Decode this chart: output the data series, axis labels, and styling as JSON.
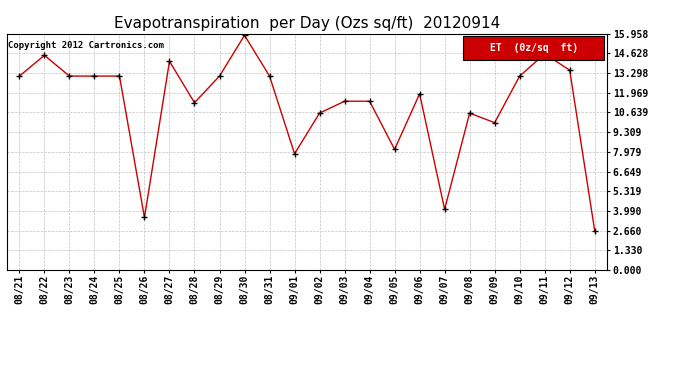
{
  "title": "Evapotranspiration  per Day (Ozs sq/ft)  20120914",
  "copyright": "Copyright 2012 Cartronics.com",
  "legend_label": "ET  (0z/sq  ft)",
  "x_labels": [
    "08/21",
    "08/22",
    "08/23",
    "08/24",
    "08/25",
    "08/26",
    "08/27",
    "08/28",
    "08/29",
    "08/30",
    "08/31",
    "09/01",
    "09/02",
    "09/03",
    "09/04",
    "09/05",
    "09/06",
    "09/07",
    "09/08",
    "09/09",
    "09/10",
    "09/11",
    "09/12",
    "09/13"
  ],
  "y_values": [
    13.1,
    14.5,
    13.1,
    13.1,
    13.1,
    3.55,
    14.1,
    11.3,
    13.1,
    15.85,
    13.1,
    7.85,
    10.6,
    11.4,
    11.4,
    8.15,
    11.9,
    4.1,
    10.6,
    9.95,
    13.1,
    14.6,
    13.5,
    2.66
  ],
  "y_ticks": [
    0.0,
    1.33,
    2.66,
    3.99,
    5.319,
    6.649,
    7.979,
    9.309,
    10.639,
    11.969,
    13.298,
    14.628,
    15.958
  ],
  "y_min": 0.0,
  "y_max": 15.958,
  "line_color": "#cc0000",
  "marker_color": "#000000",
  "grid_color": "#bbbbbb",
  "bg_color": "#ffffff",
  "legend_bg": "#cc0000",
  "legend_text_color": "#ffffff",
  "title_fontsize": 11,
  "tick_fontsize": 7,
  "copyright_fontsize": 6.5
}
